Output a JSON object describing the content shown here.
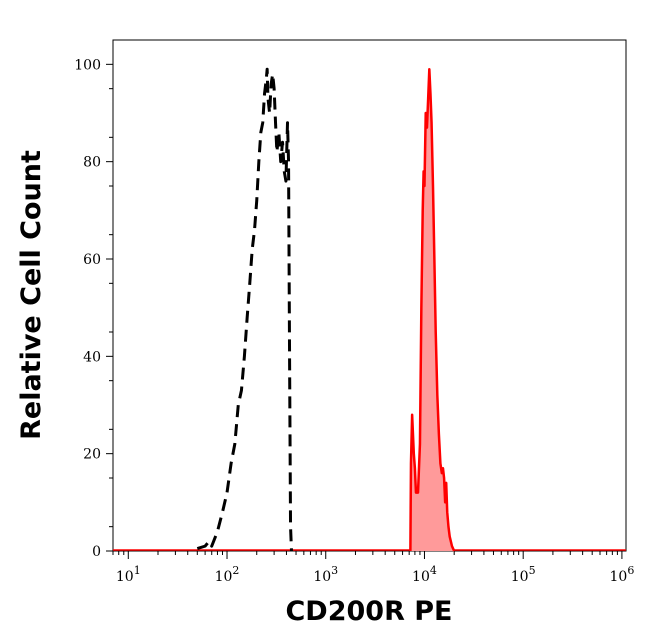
{
  "chart_data": {
    "type": "area",
    "xlabel": "CD200R PE",
    "ylabel": "Relative Cell Count",
    "xscale": "log",
    "xlim": [
      7,
      1100000
    ],
    "ylim": [
      0,
      105
    ],
    "grid": false,
    "y_ticks": [
      {
        "value": 0,
        "label": "0"
      },
      {
        "value": 20,
        "label": "20"
      },
      {
        "value": 40,
        "label": "40"
      },
      {
        "value": 60,
        "label": "60"
      },
      {
        "value": 80,
        "label": "80"
      },
      {
        "value": 100,
        "label": "100"
      }
    ],
    "x_ticks": [
      {
        "value": 10,
        "base": "10",
        "exp": "1"
      },
      {
        "value": 100,
        "base": "10",
        "exp": "2"
      },
      {
        "value": 1000,
        "base": "10",
        "exp": "3"
      },
      {
        "value": 10000,
        "base": "10",
        "exp": "4"
      },
      {
        "value": 100000,
        "base": "10",
        "exp": "5"
      },
      {
        "value": 1000000,
        "base": "10",
        "exp": "6"
      }
    ],
    "series": [
      {
        "style": "dashed",
        "color": "#000000",
        "filled": false,
        "points": [
          [
            50,
            0.5
          ],
          [
            60,
            1
          ],
          [
            66,
            2
          ],
          [
            70,
            1
          ],
          [
            80,
            4
          ],
          [
            90,
            8
          ],
          [
            100,
            12
          ],
          [
            110,
            18
          ],
          [
            120,
            22
          ],
          [
            130,
            30
          ],
          [
            140,
            33
          ],
          [
            150,
            40
          ],
          [
            160,
            48
          ],
          [
            170,
            55
          ],
          [
            180,
            62
          ],
          [
            190,
            66
          ],
          [
            200,
            72
          ],
          [
            210,
            80
          ],
          [
            220,
            86
          ],
          [
            230,
            88
          ],
          [
            240,
            94
          ],
          [
            250,
            97
          ],
          [
            255,
            99
          ],
          [
            260,
            93
          ],
          [
            270,
            90
          ],
          [
            280,
            96
          ],
          [
            290,
            98
          ],
          [
            300,
            95
          ],
          [
            310,
            88
          ],
          [
            320,
            82
          ],
          [
            335,
            86
          ],
          [
            350,
            80
          ],
          [
            365,
            84
          ],
          [
            380,
            78
          ],
          [
            395,
            76
          ],
          [
            410,
            88
          ],
          [
            420,
            80
          ],
          [
            430,
            40
          ],
          [
            440,
            5
          ],
          [
            450,
            0
          ]
        ]
      },
      {
        "style": "solid",
        "color": "#ff0000",
        "fill": "#ff9a9a",
        "filled": true,
        "points": [
          [
            7200,
            0
          ],
          [
            7300,
            18
          ],
          [
            7500,
            28
          ],
          [
            7800,
            20
          ],
          [
            8000,
            17
          ],
          [
            8200,
            12
          ],
          [
            8600,
            12
          ],
          [
            9000,
            22
          ],
          [
            9300,
            50
          ],
          [
            9600,
            70
          ],
          [
            9800,
            78
          ],
          [
            10000,
            75
          ],
          [
            10300,
            90
          ],
          [
            10600,
            87
          ],
          [
            10900,
            93
          ],
          [
            11200,
            99
          ],
          [
            11500,
            94
          ],
          [
            11800,
            88
          ],
          [
            12200,
            75
          ],
          [
            12600,
            60
          ],
          [
            13000,
            45
          ],
          [
            13500,
            32
          ],
          [
            14000,
            24
          ],
          [
            14500,
            18
          ],
          [
            15000,
            16
          ],
          [
            15400,
            17
          ],
          [
            15800,
            15
          ],
          [
            16200,
            10
          ],
          [
            16600,
            14
          ],
          [
            17000,
            8
          ],
          [
            17500,
            5
          ],
          [
            18000,
            3
          ],
          [
            19000,
            1
          ],
          [
            20000,
            0
          ]
        ]
      }
    ]
  }
}
